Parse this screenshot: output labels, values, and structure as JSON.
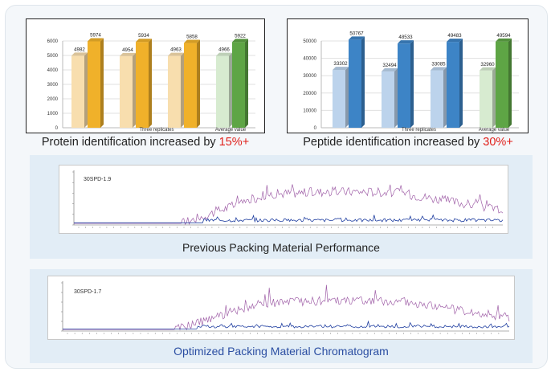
{
  "chart_data": [
    {
      "type": "bar",
      "categories": [
        "",
        "",
        "",
        "Average value"
      ],
      "xlabel_center": "Three replicates",
      "ylim": [
        0,
        6000
      ],
      "yticks": [
        0,
        1000,
        2000,
        3000,
        4000,
        5000,
        6000
      ],
      "series": [
        {
          "values": [
            4982,
            4954,
            4963,
            4966
          ]
        },
        {
          "values": [
            5974,
            5934,
            5858,
            5922
          ]
        }
      ],
      "caption": {
        "text": "Protein identification increased by ",
        "highlight": "15%+"
      }
    },
    {
      "type": "bar",
      "categories": [
        "",
        "",
        "",
        "Average value"
      ],
      "xlabel_center": "Three replicates",
      "ylim": [
        0,
        50000
      ],
      "yticks": [
        0,
        10000,
        20000,
        30000,
        40000,
        50000
      ],
      "series": [
        {
          "values": [
            33302,
            32494,
            33085,
            32960
          ]
        },
        {
          "values": [
            50767,
            48533,
            49483,
            49594
          ]
        }
      ],
      "caption": {
        "text": "Peptide identification increased by ",
        "highlight": "30%+"
      }
    }
  ],
  "chromatograms": [
    {
      "label": "30SPD-1.9",
      "title": "Previous Packing Material Performance",
      "title_color": "#222222"
    },
    {
      "label": "30SPD-1.7",
      "title": "Optimized Packing Material Chromatogram",
      "title_color": "#2b4ea2"
    }
  ],
  "colors": {
    "light_orange": "#f8deae",
    "orange": "#f0b12a",
    "light_blue": "#bcd3ec",
    "blue": "#3d84c6",
    "light_green": "#d7ebd0",
    "green": "#5ea545",
    "trace_purple": "#a060a8",
    "trace_blue": "#1f3ea0",
    "highlight_red": "#e0201b"
  }
}
